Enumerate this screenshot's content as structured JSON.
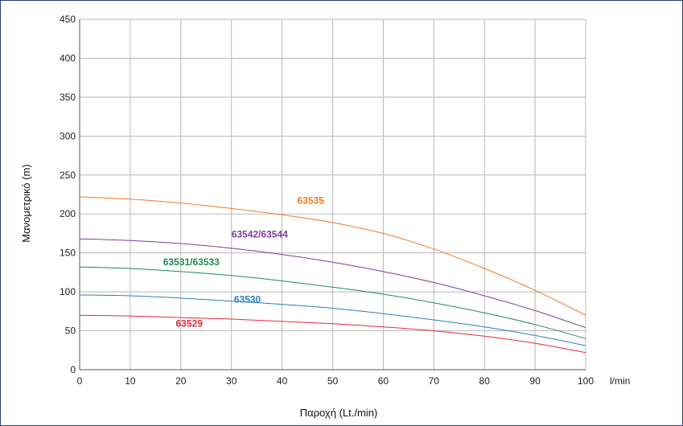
{
  "chart_data": {
    "type": "line",
    "xlabel": "Παροχή (Lt./min)",
    "ylabel": "Μανομετρικό  (m)",
    "x_unit_label": "l/min",
    "xlim": [
      0,
      100
    ],
    "ylim": [
      0,
      450
    ],
    "x_ticks": [
      0,
      10,
      20,
      30,
      40,
      50,
      60,
      70,
      80,
      90,
      100
    ],
    "y_ticks": [
      0,
      50,
      100,
      150,
      200,
      250,
      300,
      350,
      400,
      450
    ],
    "grid": true,
    "series": [
      {
        "name": "63535",
        "color": "#f07a2a",
        "label_at": [
          43,
          213
        ],
        "x": [
          0,
          10,
          20,
          30,
          40,
          50,
          60,
          70,
          80,
          90,
          100
        ],
        "y": [
          222,
          219,
          214,
          207,
          199,
          189,
          175,
          155,
          130,
          102,
          70
        ]
      },
      {
        "name": "63542/63544",
        "color": "#7a3fa0",
        "label_at": [
          30,
          170
        ],
        "x": [
          0,
          10,
          20,
          30,
          40,
          50,
          60,
          70,
          80,
          90,
          100
        ],
        "y": [
          168,
          166,
          162,
          156,
          148,
          138,
          126,
          112,
          95,
          76,
          54
        ]
      },
      {
        "name": "63531/63533",
        "color": "#1e8a5a",
        "label_at": [
          16.5,
          134
        ],
        "x": [
          0,
          10,
          20,
          30,
          40,
          50,
          60,
          70,
          80,
          90,
          100
        ],
        "y": [
          132,
          130,
          126,
          121,
          114,
          106,
          97,
          86,
          73,
          58,
          40
        ]
      },
      {
        "name": "63530",
        "color": "#2a7fc2",
        "label_at": [
          30.5,
          86
        ],
        "x": [
          0,
          10,
          20,
          30,
          40,
          50,
          60,
          70,
          80,
          90,
          100
        ],
        "y": [
          96,
          95,
          92,
          88,
          84,
          79,
          72,
          64,
          55,
          44,
          31
        ]
      },
      {
        "name": "63529",
        "color": "#e02a3a",
        "label_at": [
          19,
          55
        ],
        "x": [
          0,
          10,
          20,
          30,
          40,
          50,
          60,
          70,
          80,
          90,
          100
        ],
        "y": [
          70,
          69,
          67,
          65,
          62,
          59,
          55,
          50,
          43,
          34,
          22
        ]
      }
    ]
  }
}
